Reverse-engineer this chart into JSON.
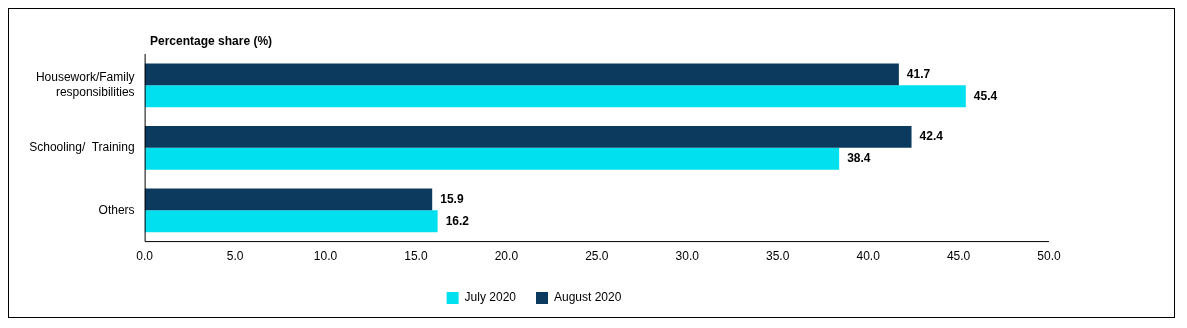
{
  "chart_data": {
    "type": "bar",
    "orientation": "horizontal",
    "xlabel": "Percentage share (%)",
    "categories": [
      "Housework/Family\nresponsibilities",
      "Schooling/  Training",
      "Others"
    ],
    "series": [
      {
        "name": "July 2020",
        "color": "#00e0ef",
        "values": [
          45.4,
          38.4,
          16.2
        ]
      },
      {
        "name": "August 2020",
        "color": "#0b3a5e",
        "values": [
          41.7,
          42.4,
          15.9
        ]
      }
    ],
    "xlim": [
      0,
      50
    ],
    "xticks": [
      {
        "value": 0,
        "label": "0.0"
      },
      {
        "value": 5,
        "label": "5.0"
      },
      {
        "value": 10,
        "label": "10.0"
      },
      {
        "value": 15,
        "label": "15.0"
      },
      {
        "value": 20,
        "label": "20.0"
      },
      {
        "value": 25,
        "label": "25.0"
      },
      {
        "value": 30,
        "label": "30.0"
      },
      {
        "value": 35,
        "label": "35.0"
      },
      {
        "value": 40,
        "label": "40.0"
      },
      {
        "value": 45,
        "label": "45.0"
      },
      {
        "value": 50,
        "label": "50.0"
      }
    ],
    "grid": false,
    "legend": "bottom",
    "data_labels": true
  }
}
